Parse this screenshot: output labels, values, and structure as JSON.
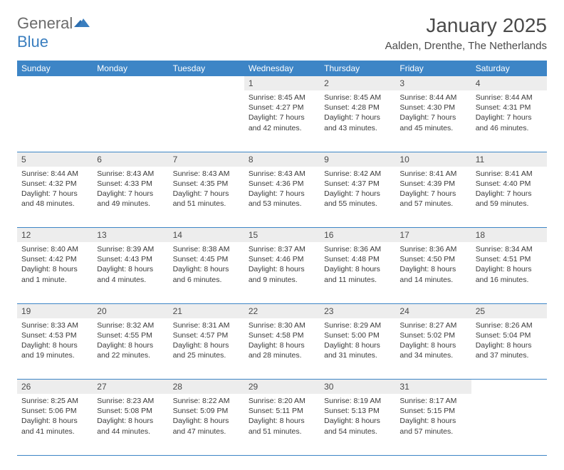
{
  "logo": {
    "text1": "General",
    "text2": "Blue"
  },
  "title": "January 2025",
  "location": "Aalden, Drenthe, The Netherlands",
  "colors": {
    "header_bg": "#3d85c6",
    "header_text": "#ffffff",
    "daynum_bg": "#ededed",
    "border": "#3d85c6",
    "text": "#3a3a3a",
    "logo_gray": "#6b6b6b",
    "logo_blue": "#3a7ebf"
  },
  "daysOfWeek": [
    "Sunday",
    "Monday",
    "Tuesday",
    "Wednesday",
    "Thursday",
    "Friday",
    "Saturday"
  ],
  "weeks": [
    [
      null,
      null,
      null,
      {
        "d": "1",
        "sr": "8:45 AM",
        "ss": "4:27 PM",
        "dl": "7 hours and 42 minutes."
      },
      {
        "d": "2",
        "sr": "8:45 AM",
        "ss": "4:28 PM",
        "dl": "7 hours and 43 minutes."
      },
      {
        "d": "3",
        "sr": "8:44 AM",
        "ss": "4:30 PM",
        "dl": "7 hours and 45 minutes."
      },
      {
        "d": "4",
        "sr": "8:44 AM",
        "ss": "4:31 PM",
        "dl": "7 hours and 46 minutes."
      }
    ],
    [
      {
        "d": "5",
        "sr": "8:44 AM",
        "ss": "4:32 PM",
        "dl": "7 hours and 48 minutes."
      },
      {
        "d": "6",
        "sr": "8:43 AM",
        "ss": "4:33 PM",
        "dl": "7 hours and 49 minutes."
      },
      {
        "d": "7",
        "sr": "8:43 AM",
        "ss": "4:35 PM",
        "dl": "7 hours and 51 minutes."
      },
      {
        "d": "8",
        "sr": "8:43 AM",
        "ss": "4:36 PM",
        "dl": "7 hours and 53 minutes."
      },
      {
        "d": "9",
        "sr": "8:42 AM",
        "ss": "4:37 PM",
        "dl": "7 hours and 55 minutes."
      },
      {
        "d": "10",
        "sr": "8:41 AM",
        "ss": "4:39 PM",
        "dl": "7 hours and 57 minutes."
      },
      {
        "d": "11",
        "sr": "8:41 AM",
        "ss": "4:40 PM",
        "dl": "7 hours and 59 minutes."
      }
    ],
    [
      {
        "d": "12",
        "sr": "8:40 AM",
        "ss": "4:42 PM",
        "dl": "8 hours and 1 minute."
      },
      {
        "d": "13",
        "sr": "8:39 AM",
        "ss": "4:43 PM",
        "dl": "8 hours and 4 minutes."
      },
      {
        "d": "14",
        "sr": "8:38 AM",
        "ss": "4:45 PM",
        "dl": "8 hours and 6 minutes."
      },
      {
        "d": "15",
        "sr": "8:37 AM",
        "ss": "4:46 PM",
        "dl": "8 hours and 9 minutes."
      },
      {
        "d": "16",
        "sr": "8:36 AM",
        "ss": "4:48 PM",
        "dl": "8 hours and 11 minutes."
      },
      {
        "d": "17",
        "sr": "8:36 AM",
        "ss": "4:50 PM",
        "dl": "8 hours and 14 minutes."
      },
      {
        "d": "18",
        "sr": "8:34 AM",
        "ss": "4:51 PM",
        "dl": "8 hours and 16 minutes."
      }
    ],
    [
      {
        "d": "19",
        "sr": "8:33 AM",
        "ss": "4:53 PM",
        "dl": "8 hours and 19 minutes."
      },
      {
        "d": "20",
        "sr": "8:32 AM",
        "ss": "4:55 PM",
        "dl": "8 hours and 22 minutes."
      },
      {
        "d": "21",
        "sr": "8:31 AM",
        "ss": "4:57 PM",
        "dl": "8 hours and 25 minutes."
      },
      {
        "d": "22",
        "sr": "8:30 AM",
        "ss": "4:58 PM",
        "dl": "8 hours and 28 minutes."
      },
      {
        "d": "23",
        "sr": "8:29 AM",
        "ss": "5:00 PM",
        "dl": "8 hours and 31 minutes."
      },
      {
        "d": "24",
        "sr": "8:27 AM",
        "ss": "5:02 PM",
        "dl": "8 hours and 34 minutes."
      },
      {
        "d": "25",
        "sr": "8:26 AM",
        "ss": "5:04 PM",
        "dl": "8 hours and 37 minutes."
      }
    ],
    [
      {
        "d": "26",
        "sr": "8:25 AM",
        "ss": "5:06 PM",
        "dl": "8 hours and 41 minutes."
      },
      {
        "d": "27",
        "sr": "8:23 AM",
        "ss": "5:08 PM",
        "dl": "8 hours and 44 minutes."
      },
      {
        "d": "28",
        "sr": "8:22 AM",
        "ss": "5:09 PM",
        "dl": "8 hours and 47 minutes."
      },
      {
        "d": "29",
        "sr": "8:20 AM",
        "ss": "5:11 PM",
        "dl": "8 hours and 51 minutes."
      },
      {
        "d": "30",
        "sr": "8:19 AM",
        "ss": "5:13 PM",
        "dl": "8 hours and 54 minutes."
      },
      {
        "d": "31",
        "sr": "8:17 AM",
        "ss": "5:15 PM",
        "dl": "8 hours and 57 minutes."
      },
      null
    ]
  ],
  "labels": {
    "sunrise": "Sunrise:",
    "sunset": "Sunset:",
    "daylight": "Daylight:"
  }
}
